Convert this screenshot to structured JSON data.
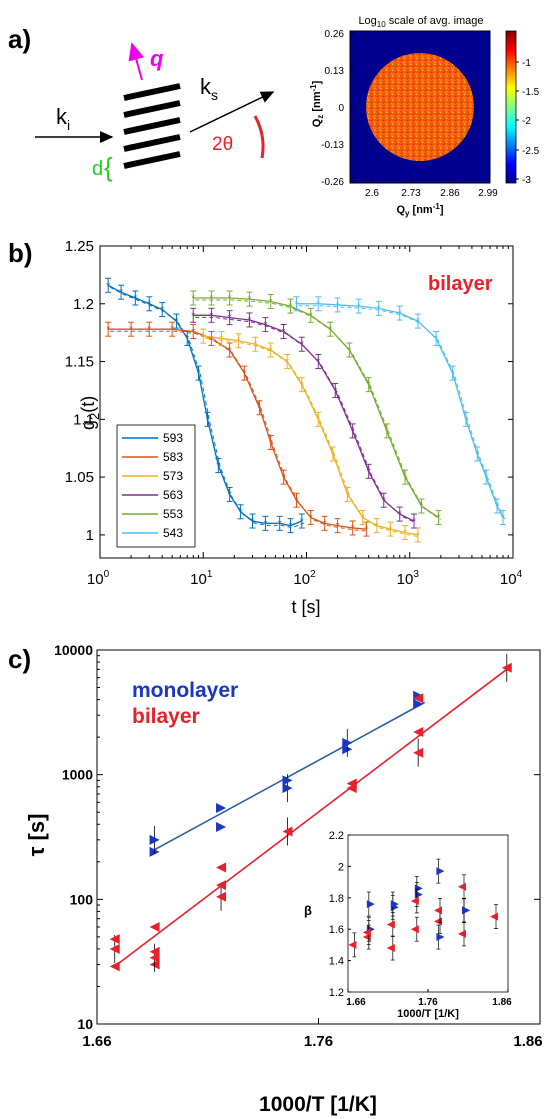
{
  "panels": {
    "a": {
      "label": "a)",
      "diagram": {
        "q_label": "q",
        "ki_label": "k",
        "ki_sub": "i",
        "ks_label": "k",
        "ks_sub": "s",
        "d_label": "d",
        "angle_label": "2θ"
      },
      "image_title_prefix": "Log",
      "image_title_sub": "10",
      "image_title_suffix": " scale of avg. image",
      "ylabel_main": "Q",
      "ylabel_sub": "z",
      "ylabel_unit_prefix": " [nm",
      "ylabel_unit_exp": "-1",
      "ylabel_unit_suffix": "]",
      "xlabel_main": "Q",
      "xlabel_sub": "y",
      "xlabel_unit_prefix": " [nm",
      "xlabel_unit_exp": "-1",
      "xlabel_unit_suffix": "]",
      "xticks": [
        "2.6",
        "2.73",
        "2.86",
        "2.99"
      ],
      "yticks": [
        "0.26",
        "0.13",
        "0",
        "-0.13",
        "-0.26"
      ],
      "colorbar_ticks": [
        "-1",
        "-1.5",
        "-2",
        "-2.5",
        "-3"
      ]
    },
    "b": {
      "label": "b)",
      "annotation": "bilayer",
      "annotation_color": "#e8202a",
      "ylabel_main": "g",
      "ylabel_sub": "2",
      "ylabel_suffix": "(t)",
      "xlabel": "t [s]",
      "yticks": [
        "1.25",
        "1.2",
        "1.15",
        "1.1",
        "1.05",
        "1"
      ],
      "xticks_base": "10",
      "xticks_exp": [
        "0",
        "1",
        "2",
        "3",
        "4"
      ]
    },
    "c": {
      "label": "c)",
      "legend_monolayer": "monolayer",
      "legend_bilayer": "bilayer",
      "monolayer_color": "#1a35c8",
      "bilayer_color": "#e8202a",
      "ylabel": "τ [s]",
      "xlabel": "1000/T [1/K]",
      "yticks": [
        "10000",
        "1000",
        "100",
        "10"
      ],
      "xticks": [
        "1.66",
        "1.76",
        "1.86"
      ],
      "inset_ylabel": "β",
      "inset_xlabel": "1000/T [1/K]",
      "inset_yticks": [
        "2.2",
        "2",
        "1.8",
        "1.6",
        "1.4",
        "1.2"
      ],
      "inset_xticks": [
        "1.66",
        "1.76",
        "1.86"
      ]
    }
  },
  "chart_data": [
    {
      "panel": "b",
      "type": "line",
      "xlabel": "t [s]",
      "ylabel": "g2(t)",
      "xscale": "log",
      "xlim": [
        1,
        10000
      ],
      "ylim": [
        0.98,
        1.25
      ],
      "legend_position": "bottom-left",
      "series": [
        {
          "name": "593",
          "color": "#0072bd",
          "x": [
            1.2,
            1.6,
            2.2,
            3,
            4,
            5.5,
            7,
            9,
            11,
            14,
            18,
            23,
            30,
            40,
            55,
            70,
            90
          ],
          "y": [
            1.216,
            1.21,
            1.205,
            1.2,
            1.195,
            1.185,
            1.17,
            1.14,
            1.1,
            1.06,
            1.035,
            1.02,
            1.012,
            1.01,
            1.01,
            1.008,
            1.012
          ]
        },
        {
          "name": "583",
          "color": "#d95319",
          "x": [
            1.2,
            2,
            3,
            5,
            8,
            12,
            18,
            25,
            35,
            45,
            60,
            80,
            110,
            150,
            200,
            280,
            380
          ],
          "y": [
            1.178,
            1.178,
            1.178,
            1.178,
            1.176,
            1.17,
            1.16,
            1.14,
            1.11,
            1.08,
            1.05,
            1.03,
            1.015,
            1.01,
            1.008,
            1.006,
            1.005
          ]
        },
        {
          "name": "573",
          "color": "#edb120",
          "x": [
            10,
            15,
            22,
            32,
            45,
            65,
            90,
            130,
            180,
            250,
            350,
            480,
            650,
            900,
            1200
          ],
          "y": [
            1.172,
            1.17,
            1.168,
            1.165,
            1.16,
            1.15,
            1.13,
            1.1,
            1.07,
            1.035,
            1.015,
            1.008,
            1.005,
            1.002,
            1.0
          ]
        },
        {
          "name": "563",
          "color": "#7e2f8e",
          "x": [
            8,
            12,
            18,
            28,
            40,
            60,
            90,
            130,
            190,
            280,
            400,
            560,
            800,
            1100
          ],
          "y": [
            1.19,
            1.19,
            1.188,
            1.186,
            1.182,
            1.176,
            1.165,
            1.15,
            1.125,
            1.09,
            1.055,
            1.03,
            1.018,
            1.012
          ]
        },
        {
          "name": "553",
          "color": "#77ac30",
          "x": [
            8,
            12,
            18,
            28,
            45,
            70,
            110,
            170,
            260,
            400,
            600,
            900,
            1300,
            1900
          ],
          "y": [
            1.205,
            1.205,
            1.205,
            1.204,
            1.202,
            1.198,
            1.19,
            1.178,
            1.16,
            1.13,
            1.09,
            1.05,
            1.025,
            1.015
          ]
        },
        {
          "name": "543",
          "color": "#4dbeee",
          "x": [
            80,
            130,
            200,
            320,
            500,
            800,
            1200,
            1800,
            2600,
            3500,
            4500,
            5500,
            7000,
            8000
          ],
          "y": [
            1.2,
            1.2,
            1.199,
            1.198,
            1.196,
            1.192,
            1.185,
            1.17,
            1.14,
            1.1,
            1.07,
            1.05,
            1.025,
            1.015
          ]
        }
      ]
    },
    {
      "panel": "c",
      "type": "scatter",
      "xlabel": "1000/T [1/K]",
      "ylabel": "τ [s]",
      "yscale": "log",
      "xlim": [
        1.66,
        1.86
      ],
      "ylim": [
        10,
        10000
      ],
      "series": [
        {
          "name": "monolayer",
          "color": "#1a35c8",
          "x": [
            1.686,
            1.686,
            1.716,
            1.716,
            1.746,
            1.746,
            1.773,
            1.773,
            1.805,
            1.805
          ],
          "y": [
            240,
            300,
            380,
            540,
            780,
            900,
            1600,
            1800,
            3700,
            4300
          ],
          "fit_x": [
            1.686,
            1.808
          ],
          "fit_y": [
            250,
            3800
          ]
        },
        {
          "name": "bilayer",
          "color": "#e8202a",
          "x": [
            1.668,
            1.668,
            1.668,
            1.686,
            1.686,
            1.686,
            1.686,
            1.716,
            1.716,
            1.716,
            1.746,
            1.775,
            1.775,
            1.805,
            1.805,
            1.805,
            1.845
          ],
          "y": [
            29,
            40,
            48,
            30,
            34,
            38,
            60,
            105,
            130,
            180,
            350,
            780,
            850,
            1500,
            2200,
            4100,
            7200
          ],
          "fit_x": [
            1.668,
            1.845
          ],
          "fit_y": [
            29,
            7000
          ]
        }
      ]
    },
    {
      "panel": "c-inset",
      "type": "scatter",
      "xlabel": "1000/T [1/K]",
      "ylabel": "β",
      "xlim": [
        1.66,
        1.86
      ],
      "ylim": [
        1.2,
        2.2
      ],
      "series": [
        {
          "name": "monolayer",
          "color": "#1a35c8",
          "x": [
            1.686,
            1.686,
            1.716,
            1.716,
            1.746,
            1.746,
            1.773,
            1.773,
            1.805,
            1.805
          ],
          "y": [
            1.6,
            1.76,
            1.74,
            1.76,
            1.82,
            1.86,
            1.55,
            1.97,
            1.72,
            1.72
          ]
        },
        {
          "name": "bilayer",
          "color": "#e8202a",
          "x": [
            1.668,
            1.686,
            1.686,
            1.716,
            1.716,
            1.746,
            1.746,
            1.775,
            1.775,
            1.805,
            1.805,
            1.845
          ],
          "y": [
            1.5,
            1.55,
            1.58,
            1.48,
            1.63,
            1.6,
            1.78,
            1.65,
            1.72,
            1.57,
            1.87,
            1.68
          ]
        }
      ]
    }
  ]
}
